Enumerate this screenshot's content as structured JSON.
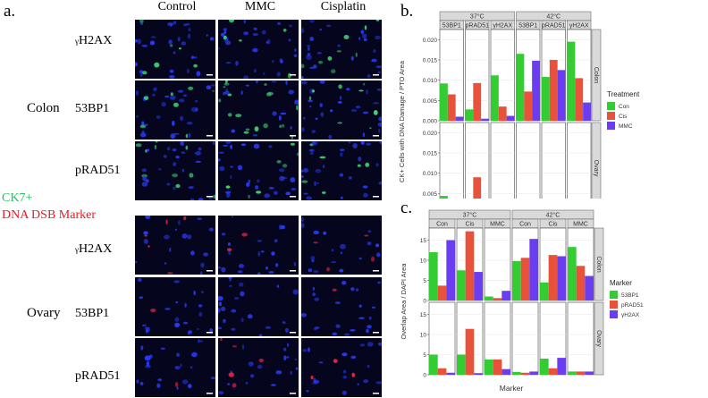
{
  "panel_a": {
    "label": "a.",
    "columns": [
      "Control",
      "MMC",
      "Cisplatin"
    ],
    "tissues": [
      {
        "name": "Colon",
        "markers": [
          {
            "sub": "γ",
            "text": "H2AX"
          },
          {
            "sub": "",
            "text": "53BP1"
          },
          {
            "sub": "",
            "text": "pRAD51"
          }
        ]
      },
      {
        "name": "Ovary",
        "markers": [
          {
            "sub": "γ",
            "text": "H2AX"
          },
          {
            "sub": "",
            "text": "53BP1"
          },
          {
            "sub": "",
            "text": "pRAD51"
          }
        ]
      }
    ],
    "legend": {
      "line1": "CK7+",
      "line1_color": "#22c55e",
      "line2": "DNA DSB Marker",
      "line2_color": "#e11d24"
    },
    "colors": {
      "tile_bg": "#05061e",
      "nuclei": "#2a3cff",
      "ck7": "#3fe07a",
      "marker": "#ff2a4a"
    }
  },
  "panel_b": {
    "label": "b.",
    "ylabel": "CK+ Cells with DNA Damage / PTO Area",
    "temps": [
      "37°C",
      "42°C"
    ],
    "markers": [
      "53BP1",
      "pRAD51",
      "γH2AX"
    ],
    "rows": [
      "Colon",
      "Ovary"
    ],
    "yticks": [
      "0.000",
      "0.005",
      "0.010",
      "0.015",
      "0.020"
    ],
    "legend_title": "Treatment",
    "legend": [
      "Con",
      "Cis",
      "MMC"
    ]
  },
  "panel_c": {
    "label": "c.",
    "ylabel": "Overlap Area / DAPI Area",
    "xlabel": "Marker",
    "temps": [
      "37°C",
      "42°C"
    ],
    "treatments": [
      "Con",
      "Cis",
      "MMC"
    ],
    "rows": [
      "Colon",
      "Ovary"
    ],
    "legend_title": "Marker",
    "legend": [
      "53BP1",
      "pRAD51",
      "γH2AX"
    ]
  },
  "chart_data": [
    {
      "type": "bar",
      "ylabel": "CK+ Cells with DNA Damage / PTO Area",
      "ylim": [
        0,
        0.0225
      ],
      "facets": {
        "columns_outer": [
          "37°C",
          "42°C"
        ],
        "columns_inner": [
          "53BP1",
          "pRAD51",
          "γH2AX"
        ],
        "rows": [
          "Colon",
          "Ovary"
        ]
      },
      "series": [
        {
          "name": "Con",
          "color": "#33cc33",
          "values": {
            "Colon": [
              0.0092,
              0.0028,
              0.0112,
              0.0165,
              0.0108,
              0.0195
            ],
            "Ovary": [
              0.0044,
              0.001,
              0.0004,
              0.0003,
              0.0004,
              0.0003
            ]
          }
        },
        {
          "name": "Cis",
          "color": "#e8513a",
          "values": {
            "Colon": [
              0.0065,
              0.0093,
              0.0035,
              0.0072,
              0.015,
              0.0105
            ],
            "Ovary": [
              0.0037,
              0.009,
              0.0004,
              0.0024,
              0.0009,
              0.0023
            ]
          }
        },
        {
          "name": "MMC",
          "color": "#6a3df0",
          "values": {
            "Colon": [
              0.001,
              0.0005,
              0.0012,
              0.0148,
              0.0125,
              0.0045
            ],
            "Ovary": [
              0.0032,
              0.0031,
              0.001,
              0.0002,
              0.0008,
              0.001
            ]
          }
        }
      ]
    },
    {
      "type": "bar",
      "ylabel": "Overlap Area / DAPI Area",
      "xlabel": "Marker",
      "facets": {
        "columns_outer": [
          "37°C",
          "42°C"
        ],
        "columns_inner": [
          "Con",
          "Cis",
          "MMC"
        ],
        "rows": [
          "Colon",
          "Ovary"
        ]
      },
      "ylim": [
        0,
        18
      ],
      "series": [
        {
          "name": "53BP1",
          "color": "#33cc33",
          "values": {
            "Colon": [
              12.0,
              7.5,
              1.0,
              9.8,
              4.5,
              13.3
            ],
            "Ovary": [
              5.0,
              5.0,
              3.8,
              0.7,
              4.0,
              0.8
            ]
          }
        },
        {
          "name": "pRAD51",
          "color": "#e8513a",
          "values": {
            "Colon": [
              3.7,
              17.2,
              0.6,
              10.6,
              11.3,
              8.6
            ],
            "Ovary": [
              1.6,
              11.4,
              3.8,
              0.5,
              1.6,
              0.8
            ]
          }
        },
        {
          "name": "γH2AX",
          "color": "#6a3df0",
          "values": {
            "Colon": [
              15.0,
              7.1,
              2.4,
              15.3,
              11.0,
              6.1
            ],
            "Ovary": [
              0.5,
              0.4,
              1.4,
              0.8,
              4.2,
              0.8
            ]
          }
        }
      ]
    }
  ]
}
